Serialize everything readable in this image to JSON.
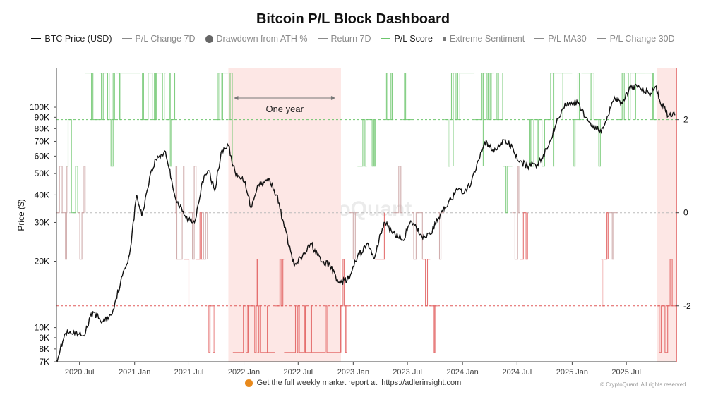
{
  "chart_data": {
    "type": "line",
    "title": "Bitcoin P/L Block Dashboard",
    "xlabel": "",
    "ylabel": "Price ($)",
    "y_scale": "log",
    "ylim": [
      7000,
      150000
    ],
    "y2lim": [
      -3.2,
      3.1
    ],
    "x_range": [
      "2020-04-15",
      "2025-12-15"
    ],
    "x_ticks": [
      {
        "date": "2020-07-01",
        "label": "2020 Jul"
      },
      {
        "date": "2021-01-01",
        "label": "2021 Jan"
      },
      {
        "date": "2021-07-01",
        "label": "2021 Jul"
      },
      {
        "date": "2022-01-01",
        "label": "2022 Jan"
      },
      {
        "date": "2022-07-01",
        "label": "2022 Jul"
      },
      {
        "date": "2023-01-01",
        "label": "2023 Jan"
      },
      {
        "date": "2023-07-01",
        "label": "2023 Jul"
      },
      {
        "date": "2024-01-01",
        "label": "2024 Jan"
      },
      {
        "date": "2024-07-01",
        "label": "2024 Jul"
      },
      {
        "date": "2025-01-01",
        "label": "2025 Jan"
      },
      {
        "date": "2025-07-01",
        "label": "2025 Jul"
      }
    ],
    "y_ticks": [
      {
        "value": 8000,
        "label": "8K"
      },
      {
        "value": 9000,
        "label": "9K"
      },
      {
        "value": 10000,
        "label": "10K"
      },
      {
        "value": 20000,
        "label": "20K"
      },
      {
        "value": 30000,
        "label": "30K"
      },
      {
        "value": 40000,
        "label": "40K"
      },
      {
        "value": 50000,
        "label": "50K"
      },
      {
        "value": 60000,
        "label": "60K"
      },
      {
        "value": 70000,
        "label": "70K"
      },
      {
        "value": 80000,
        "label": "80K"
      },
      {
        "value": 90000,
        "label": "90K"
      },
      {
        "value": 100000,
        "label": "100K"
      }
    ],
    "y_tick_7k": {
      "value": 7000,
      "label": "7K"
    },
    "y2_ticks": [
      {
        "value": 2,
        "label": "2"
      },
      {
        "value": 0,
        "label": "0"
      },
      {
        "value": -2,
        "label": "-2"
      }
    ],
    "reference_lines": [
      {
        "value": 2,
        "color": "#6cc56c"
      },
      {
        "value": 0,
        "color": "#bbbbbb"
      },
      {
        "value": -2,
        "color": "#e05a5a"
      }
    ],
    "shaded_regions": [
      {
        "start": "2021-11-10",
        "end": "2022-11-21",
        "label": "One year"
      },
      {
        "start": "2025-10-10",
        "end": "2025-12-15",
        "label": ""
      }
    ],
    "legend": [
      {
        "name": "BTC Price (USD)",
        "color": "#111111",
        "shape": "line",
        "visible": true
      },
      {
        "name": "P/L Change 7D",
        "color": "#8a8a8a",
        "shape": "line",
        "visible": false
      },
      {
        "name": "Drawdown from ATH %",
        "color": "#666666",
        "shape": "dot",
        "visible": false
      },
      {
        "name": "Return 7D",
        "color": "#8a8a8a",
        "shape": "line",
        "visible": false
      },
      {
        "name": "P/L Score",
        "color": "#6cc56c",
        "shape": "line",
        "visible": true
      },
      {
        "name": "Extreme Sentiment",
        "color": "#777777",
        "shape": "square",
        "visible": false
      },
      {
        "name": "P/L MA30",
        "color": "#8a8a8a",
        "shape": "line",
        "visible": false
      },
      {
        "name": "P/L Change 30D",
        "color": "#8a8a8a",
        "shape": "line",
        "visible": false
      }
    ],
    "series": [
      {
        "name": "BTC Price (USD)",
        "dates": [
          "2020-04-15",
          "2020-05-15",
          "2020-06-15",
          "2020-07-15",
          "2020-08-15",
          "2020-09-15",
          "2020-10-15",
          "2020-11-15",
          "2020-12-15",
          "2021-01-08",
          "2021-01-25",
          "2021-02-20",
          "2021-03-13",
          "2021-04-14",
          "2021-05-19",
          "2021-06-21",
          "2021-07-20",
          "2021-08-15",
          "2021-09-06",
          "2021-09-25",
          "2021-10-20",
          "2021-11-10",
          "2021-12-05",
          "2022-01-05",
          "2022-01-24",
          "2022-02-15",
          "2022-03-28",
          "2022-04-20",
          "2022-05-10",
          "2022-06-18",
          "2022-07-15",
          "2022-08-14",
          "2022-09-15",
          "2022-10-15",
          "2022-11-09",
          "2022-11-21",
          "2022-12-20",
          "2023-01-15",
          "2023-02-20",
          "2023-03-10",
          "2023-04-14",
          "2023-05-15",
          "2023-06-15",
          "2023-07-15",
          "2023-08-18",
          "2023-09-15",
          "2023-10-25",
          "2023-11-15",
          "2023-12-15",
          "2024-01-15",
          "2024-02-15",
          "2024-03-14",
          "2024-04-15",
          "2024-05-20",
          "2024-06-15",
          "2024-07-05",
          "2024-08-05",
          "2024-09-06",
          "2024-10-15",
          "2024-11-12",
          "2024-12-17",
          "2025-01-20",
          "2025-02-25",
          "2025-04-08",
          "2025-05-22",
          "2025-06-15",
          "2025-07-14",
          "2025-08-14",
          "2025-09-15",
          "2025-10-06",
          "2025-10-20",
          "2025-11-18",
          "2025-12-10"
        ],
        "values": [
          7100,
          9400,
          9300,
          9200,
          11800,
          10600,
          11400,
          16000,
          21500,
          40000,
          32000,
          48000,
          58000,
          63000,
          38000,
          31500,
          30000,
          46000,
          51500,
          42000,
          64000,
          67000,
          49000,
          46000,
          35000,
          44000,
          47000,
          40000,
          31000,
          19000,
          21000,
          24000,
          20000,
          19200,
          16500,
          16000,
          16800,
          21000,
          24000,
          20500,
          30000,
          27000,
          25000,
          30300,
          26000,
          26500,
          34000,
          37000,
          42000,
          41500,
          52000,
          70000,
          63000,
          71000,
          66000,
          57000,
          54000,
          55000,
          67000,
          89000,
          106000,
          104000,
          86000,
          77000,
          111000,
          105000,
          122000,
          123000,
          115000,
          124000,
          108000,
          91000,
          92000
        ]
      },
      {
        "name": "P/L Score",
        "dates": [
          "2020-04-15",
          "2020-05-20",
          "2020-06-25",
          "2020-07-20",
          "2020-08-15",
          "2020-09-05",
          "2020-10-10",
          "2020-11-01",
          "2020-12-10",
          "2021-01-20",
          "2021-02-15",
          "2021-03-15",
          "2021-04-15",
          "2021-05-15",
          "2021-06-15",
          "2021-07-01",
          "2021-07-25",
          "2021-08-15",
          "2021-09-01",
          "2021-09-25",
          "2021-10-15",
          "2021-11-10",
          "2021-11-25",
          "2021-12-20",
          "2022-01-15",
          "2022-02-15",
          "2022-03-20",
          "2022-04-15",
          "2022-05-15",
          "2022-06-15",
          "2022-08-15",
          "2022-09-15",
          "2022-11-21",
          "2022-12-20",
          "2023-01-15",
          "2023-02-15",
          "2023-03-15",
          "2023-04-15",
          "2023-05-15",
          "2023-06-15",
          "2023-07-15",
          "2023-08-20",
          "2023-09-15",
          "2023-10-10",
          "2023-11-01",
          "2023-12-01",
          "2024-01-01",
          "2024-02-10",
          "2024-03-10",
          "2024-04-15",
          "2024-05-15",
          "2024-06-15",
          "2024-07-10",
          "2024-08-05",
          "2024-09-01",
          "2024-10-01",
          "2024-11-01",
          "2024-12-01",
          "2025-01-01",
          "2025-02-01",
          "2025-03-01",
          "2025-04-08",
          "2025-05-01",
          "2025-06-01",
          "2025-07-01",
          "2025-08-01",
          "2025-09-01",
          "2025-10-01",
          "2025-10-10",
          "2025-12-15"
        ],
        "values": [
          0,
          1,
          0,
          3,
          2,
          3,
          2,
          3,
          3,
          2,
          3,
          3,
          2,
          0,
          -1,
          0,
          -1,
          0,
          -2,
          2,
          3,
          2,
          -3,
          -3,
          -2,
          -3,
          -3,
          -2,
          -3,
          -3,
          -3,
          -3,
          -2,
          0,
          1,
          2,
          -1,
          2,
          0,
          2,
          0,
          -1,
          -2,
          0,
          2,
          3,
          3,
          2,
          3,
          2,
          1,
          0,
          -1,
          1,
          2,
          2,
          3,
          3,
          2,
          3,
          2,
          -1,
          0,
          2,
          3,
          3,
          3,
          2,
          -2,
          -3
        ]
      }
    ]
  },
  "ui": {
    "footer_text": "Get the full weekly market report at",
    "footer_link": "https://adlerinsight.com",
    "watermark": "CryptoQuant",
    "copyright": "© CryptoQuant. All rights reserved."
  }
}
